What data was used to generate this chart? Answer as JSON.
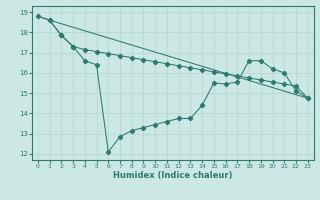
{
  "xlabel": "Humidex (Indice chaleur)",
  "ylabel": "",
  "xlim": [
    -0.5,
    23.5
  ],
  "ylim": [
    11.7,
    19.3
  ],
  "yticks": [
    12,
    13,
    14,
    15,
    16,
    17,
    18,
    19
  ],
  "xticks": [
    0,
    1,
    2,
    3,
    4,
    5,
    6,
    7,
    8,
    9,
    10,
    11,
    12,
    13,
    14,
    15,
    16,
    17,
    18,
    19,
    20,
    21,
    22,
    23
  ],
  "bg_color": "#cce8e4",
  "line_color": "#2d7a6e",
  "grid_color": "#b8d8d4",
  "line1_x": [
    0,
    1,
    2,
    3,
    4,
    5,
    6,
    7,
    8,
    9,
    10,
    11,
    12,
    13,
    14,
    15,
    16,
    17,
    18,
    19,
    20,
    21,
    22,
    23
  ],
  "line1_y": [
    18.8,
    18.6,
    17.85,
    17.3,
    16.6,
    16.4,
    12.1,
    12.85,
    13.15,
    13.3,
    13.45,
    13.6,
    13.75,
    13.75,
    14.4,
    15.5,
    15.45,
    15.55,
    16.6,
    16.6,
    16.2,
    16.0,
    15.1,
    14.75
  ],
  "line2_x": [
    1,
    2,
    3,
    4,
    5,
    6,
    7,
    8,
    9,
    10,
    11,
    12,
    13,
    14,
    15,
    16,
    17,
    18,
    19,
    20,
    21,
    22,
    23
  ],
  "line2_y": [
    18.6,
    17.85,
    17.3,
    17.15,
    17.05,
    16.95,
    16.85,
    16.75,
    16.65,
    16.55,
    16.45,
    16.35,
    16.25,
    16.15,
    16.05,
    15.95,
    15.85,
    15.75,
    15.65,
    15.55,
    15.45,
    15.35,
    14.75
  ],
  "line3_x": [
    0,
    1,
    23
  ],
  "line3_y": [
    18.8,
    18.6,
    14.75
  ]
}
